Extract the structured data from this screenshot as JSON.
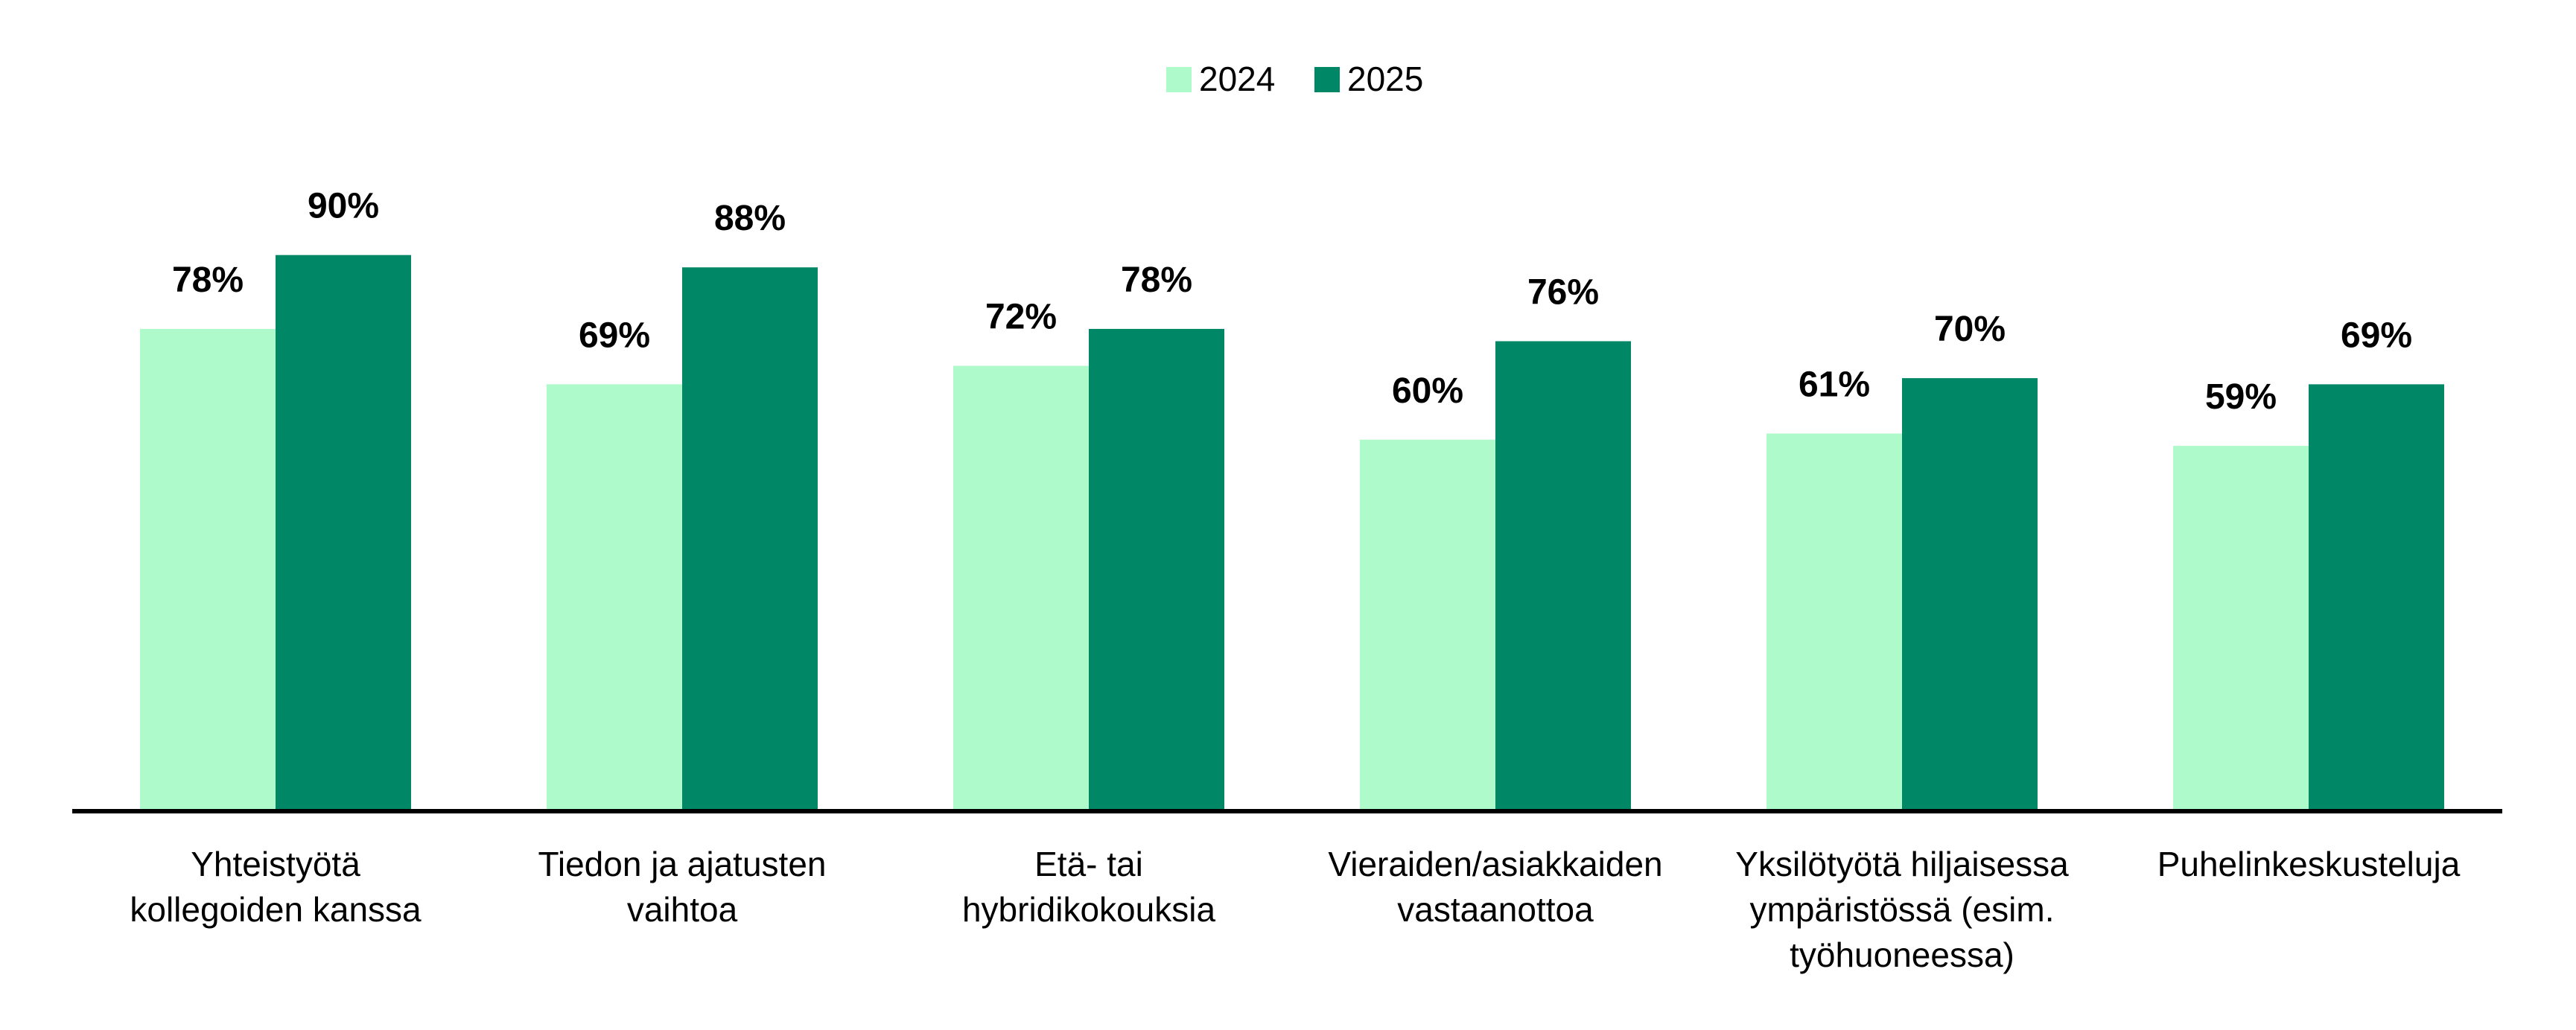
{
  "chart_data": {
    "type": "bar",
    "categories": [
      [
        "Yhteistyötä",
        "kollegoiden kanssa"
      ],
      [
        "Tiedon ja ajatusten",
        "vaihtoa"
      ],
      [
        "Etä- tai",
        "hybridikokouksia"
      ],
      [
        "Vieraiden/asiakkaiden",
        "vastaanottoa"
      ],
      [
        "Yksilötyötä hiljaisessa",
        "ympäristössä (esim.",
        "työhuoneessa)"
      ],
      [
        "Puhelinkeskusteluja"
      ]
    ],
    "series": [
      {
        "name": "2024",
        "color": "#aefacb",
        "values": [
          78,
          69,
          72,
          60,
          61,
          59
        ],
        "labels": [
          "78%",
          "69%",
          "72%",
          "60%",
          "61%",
          "59%"
        ]
      },
      {
        "name": "2025",
        "color": "#008866",
        "values": [
          90,
          88,
          78,
          76,
          70,
          69
        ],
        "labels": [
          "90%",
          "88%",
          "78%",
          "76%",
          "70%",
          "69%"
        ]
      }
    ],
    "ylim": [
      0,
      100
    ],
    "grid": false,
    "legend": "top-center",
    "title": "",
    "xlabel": "",
    "ylabel": ""
  }
}
